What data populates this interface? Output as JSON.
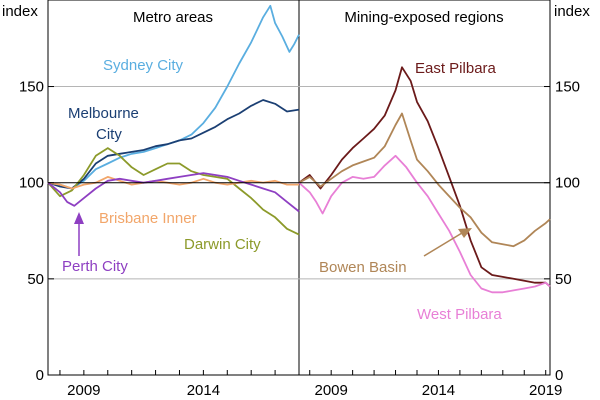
{
  "chart_data": {
    "type": "line",
    "y_unit_left": "index",
    "y_unit_right": "index",
    "ylim": [
      0,
      195
    ],
    "y_ticks": [
      0,
      50,
      100,
      150
    ],
    "y_tick_labels": [
      "0",
      "50",
      "100",
      "150"
    ],
    "reference_line": 100,
    "panels": [
      {
        "title": "Metro areas",
        "xlim": [
          2007.5,
          2018.0
        ],
        "x_ticks": [
          2009,
          2014
        ],
        "x_tick_labels": [
          "2009",
          "2014"
        ],
        "series": [
          {
            "name": "Sydney City",
            "color": "#5aaee0",
            "x": [
              2007.5,
              2008,
              2008.5,
              2009,
              2009.5,
              2010,
              2010.5,
              2011,
              2011.5,
              2012,
              2012.5,
              2013,
              2013.5,
              2014,
              2014.5,
              2015,
              2015.5,
              2016,
              2016.5,
              2016.8,
              2017,
              2017.3,
              2017.6,
              2017.8,
              2018.0
            ],
            "y": [
              100,
              99,
              97,
              101,
              107,
              110,
              113,
              115,
              116,
              118,
              120,
              122,
              125,
              131,
              139,
              150,
              162,
              173,
              186,
              192,
              183,
              176,
              168,
              172,
              177
            ]
          },
          {
            "name": "Melbourne City",
            "color": "#1b3f73",
            "x": [
              2007.5,
              2008,
              2008.5,
              2009,
              2009.5,
              2010,
              2010.5,
              2011,
              2011.5,
              2012,
              2012.5,
              2013,
              2013.5,
              2014,
              2014.5,
              2015,
              2015.5,
              2016,
              2016.5,
              2017,
              2017.5,
              2018.0
            ],
            "y": [
              100,
              98,
              97,
              102,
              110,
              114,
              115,
              116,
              117,
              119,
              120,
              122,
              123,
              126,
              129,
              133,
              136,
              140,
              143,
              141,
              137,
              138
            ]
          },
          {
            "name": "Darwin City",
            "color": "#8c9a2a",
            "x": [
              2007.5,
              2008,
              2008.5,
              2009,
              2009.5,
              2010,
              2010.5,
              2011,
              2011.5,
              2012,
              2012.5,
              2013,
              2013.5,
              2014,
              2014.5,
              2015,
              2015.5,
              2016,
              2016.5,
              2017,
              2017.5,
              2018.0
            ],
            "y": [
              100,
              93,
              96,
              104,
              114,
              118,
              114,
              108,
              104,
              107,
              110,
              110,
              106,
              104,
              103,
              102,
              97,
              92,
              86,
              82,
              76,
              73
            ]
          },
          {
            "name": "Brisbane Inner",
            "color": "#f2a66a",
            "x": [
              2007.5,
              2008,
              2008.5,
              2009,
              2009.5,
              2010,
              2010.5,
              2011,
              2011.5,
              2012,
              2012.5,
              2013,
              2013.5,
              2014,
              2014.5,
              2015,
              2015.5,
              2016,
              2016.5,
              2017,
              2017.5,
              2018.0
            ],
            "y": [
              100,
              99,
              97,
              99,
              100,
              103,
              101,
              99,
              100,
              101,
              100,
              99,
              100,
              102,
              100,
              99,
              100,
              101,
              100,
              101,
              99,
              99
            ]
          },
          {
            "name": "Perth City",
            "color": "#8e3fc2",
            "x": [
              2007.5,
              2008,
              2008.3,
              2008.6,
              2009,
              2009.5,
              2010,
              2010.5,
              2011,
              2011.5,
              2012,
              2012.5,
              2013,
              2013.5,
              2014,
              2014.5,
              2015,
              2015.5,
              2016,
              2016.5,
              2017,
              2017.5,
              2018.0
            ],
            "y": [
              100,
              95,
              90,
              88,
              92,
              97,
              101,
              102,
              101,
              100,
              101,
              102,
              103,
              104,
              105,
              104,
              103,
              101,
              99,
              97,
              95,
              90,
              85
            ]
          }
        ],
        "annotations": [
          "Sydney City",
          "Melbourne",
          "City",
          "Brisbane Inner",
          "Darwin City",
          "Perth City"
        ]
      },
      {
        "title": "Mining-exposed regions",
        "xlim": [
          2007.5,
          2019.2
        ],
        "x_ticks": [
          2009,
          2014,
          2019
        ],
        "x_tick_labels": [
          "2009",
          "2014",
          "2019"
        ],
        "series": [
          {
            "name": "East Pilbara",
            "color": "#6b1a1a",
            "x": [
              2007.5,
              2008,
              2008.5,
              2009,
              2009.5,
              2010,
              2010.5,
              2011,
              2011.5,
              2012,
              2012.3,
              2012.7,
              2013,
              2013.5,
              2014,
              2014.5,
              2015,
              2015.5,
              2016,
              2016.5,
              2017,
              2017.5,
              2018,
              2018.5,
              2019,
              2019.2
            ],
            "y": [
              100,
              104,
              97,
              104,
              112,
              118,
              123,
              128,
              135,
              148,
              160,
              153,
              142,
              132,
              118,
              103,
              88,
              70,
              56,
              52,
              51,
              50,
              49,
              48,
              48,
              46
            ]
          },
          {
            "name": "Bowen Basin",
            "color": "#b08657",
            "x": [
              2007.5,
              2008,
              2008.5,
              2009,
              2009.5,
              2010,
              2010.5,
              2011,
              2011.5,
              2012,
              2012.3,
              2012.7,
              2013,
              2013.5,
              2014,
              2014.5,
              2015,
              2015.5,
              2016,
              2016.5,
              2017,
              2017.5,
              2018,
              2018.5,
              2019,
              2019.2
            ],
            "y": [
              100,
              103,
              98,
              102,
              106,
              109,
              111,
              113,
              119,
              130,
              136,
              122,
              112,
              106,
              99,
              93,
              87,
              82,
              74,
              69,
              68,
              67,
              70,
              75,
              79,
              81
            ]
          },
          {
            "name": "West Pilbara",
            "color": "#e87fd6",
            "x": [
              2007.5,
              2008,
              2008.3,
              2008.6,
              2009,
              2009.5,
              2010,
              2010.5,
              2011,
              2011.5,
              2012,
              2012.5,
              2013,
              2013.5,
              2014,
              2014.5,
              2015,
              2015.5,
              2016,
              2016.5,
              2017,
              2017.5,
              2018,
              2018.5,
              2019,
              2019.2
            ],
            "y": [
              100,
              95,
              90,
              84,
              93,
              100,
              103,
              102,
              103,
              109,
              114,
              108,
              100,
              93,
              84,
              75,
              64,
              52,
              45,
              43,
              43,
              44,
              45,
              46,
              48,
              46
            ]
          }
        ],
        "annotations": [
          "East Pilbara",
          "Bowen Basin",
          "West Pilbara"
        ]
      }
    ]
  }
}
